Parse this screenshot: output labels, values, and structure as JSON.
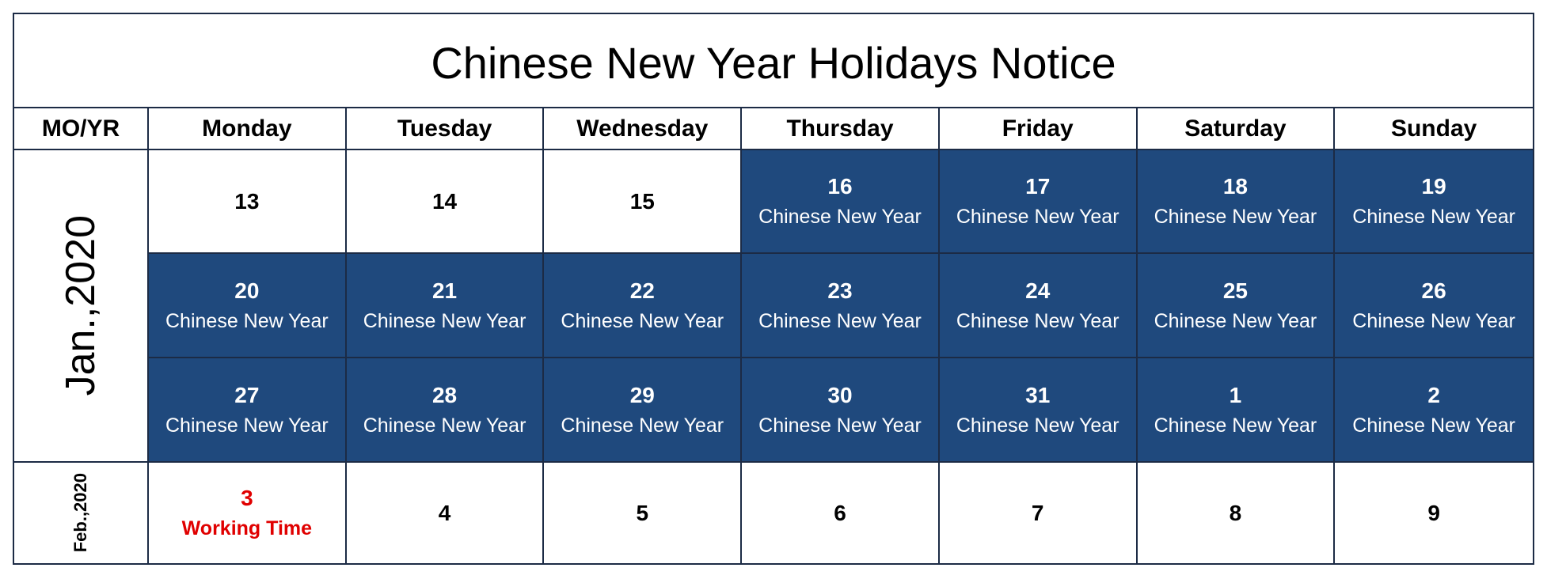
{
  "title": "Chinese New Year Holidays Notice",
  "headers": [
    "MO/YR",
    "Monday",
    "Tuesday",
    "Wednesday",
    "Thursday",
    "Friday",
    "Saturday",
    "Sunday"
  ],
  "colors": {
    "holiday_bg": "#1f497d",
    "working_text": "#e00000",
    "border": "#1c2b45"
  },
  "months": [
    {
      "label": "Jan.,2020",
      "weeks": [
        0,
        1,
        2
      ]
    },
    {
      "label": "Feb.,2020",
      "weeks": [
        3
      ]
    }
  ],
  "weeks": [
    [
      {
        "day": "13",
        "note": ""
      },
      {
        "day": "14",
        "note": ""
      },
      {
        "day": "15",
        "note": ""
      },
      {
        "day": "16",
        "note": "Chinese New Year"
      },
      {
        "day": "17",
        "note": "Chinese New Year"
      },
      {
        "day": "18",
        "note": "Chinese New Year"
      },
      {
        "day": "19",
        "note": "Chinese New Year"
      }
    ],
    [
      {
        "day": "20",
        "note": "Chinese New Year"
      },
      {
        "day": "21",
        "note": "Chinese New Year"
      },
      {
        "day": "22",
        "note": "Chinese New Year"
      },
      {
        "day": "23",
        "note": "Chinese New Year"
      },
      {
        "day": "24",
        "note": "Chinese New Year"
      },
      {
        "day": "25",
        "note": "Chinese New Year"
      },
      {
        "day": "26",
        "note": "Chinese New Year"
      }
    ],
    [
      {
        "day": "27",
        "note": "Chinese New Year"
      },
      {
        "day": "28",
        "note": "Chinese New Year"
      },
      {
        "day": "29",
        "note": "Chinese New Year"
      },
      {
        "day": "30",
        "note": "Chinese New Year"
      },
      {
        "day": "31",
        "note": "Chinese New Year"
      },
      {
        "day": "1",
        "note": "Chinese New Year"
      },
      {
        "day": "2",
        "note": "Chinese New Year"
      }
    ],
    [
      {
        "day": "3",
        "note": "Working Time",
        "working": true
      },
      {
        "day": "4",
        "note": ""
      },
      {
        "day": "5",
        "note": ""
      },
      {
        "day": "6",
        "note": ""
      },
      {
        "day": "7",
        "note": ""
      },
      {
        "day": "8",
        "note": ""
      },
      {
        "day": "9",
        "note": ""
      }
    ]
  ]
}
